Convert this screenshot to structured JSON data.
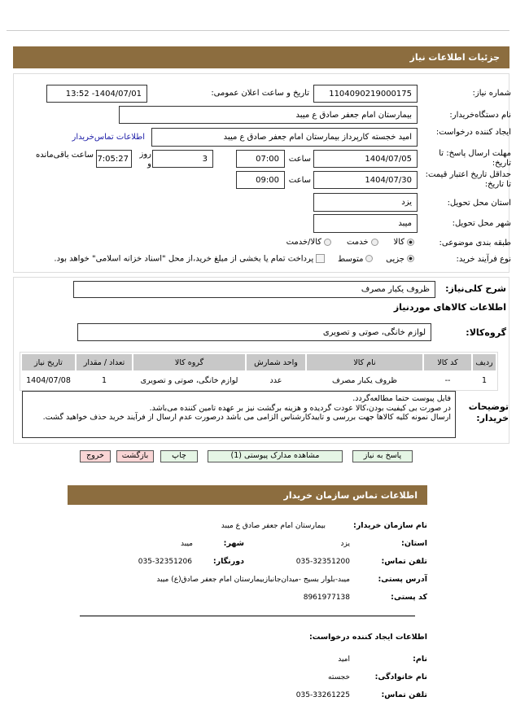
{
  "header": {
    "title": "جزئیات اطلاعات نیاز"
  },
  "form": {
    "need_number_label": "شماره نیاز:",
    "need_number": "1104090219000175",
    "announce_label": "تاریخ و ساعت اعلان عمومی:",
    "announce_value": "1404/07/01- 13:52",
    "buyer_label": "نام دستگاه‌خریدار:",
    "buyer_value": "بیمارستان امام جعفر صادق ع میبد",
    "creator_label": "ایجاد کننده درخواست:",
    "creator_value": "امید خجسته کارپرداز بیمارستان امام جعفر صادق ع میبد",
    "contact_link": "اطلاعات تماس‌خریدار",
    "deadline_label": "مهلت ارسال پاسخ: تا تاریخ:",
    "deadline_date": "1404/07/05",
    "time_label": "ساعت",
    "deadline_time": "07:00",
    "days_value": "3",
    "days_label": "روز و",
    "remaining_value": "17:05:27",
    "remaining_label": "ساعت باقی‌مانده",
    "validity_label": "حداقل تاریخ اعتبار قیمت: تا تاریخ:",
    "validity_date": "1404/07/30",
    "validity_time": "09:00",
    "province_label": "استان محل تحویل:",
    "province_value": "یزد",
    "city_label": "شهر محل تحویل:",
    "city_value": "میبد",
    "category_label": "طبقه بندی موضوعی:",
    "category_options": [
      "کالا",
      "خدمت",
      "کالا/خدمت"
    ],
    "category_selected": "کالا",
    "process_label": "نوع فرآیند خرید:",
    "process_options": [
      "جزیی",
      "متوسط"
    ],
    "process_selected": "جزیی",
    "treasury_text": "پرداخت تمام یا بخشی از مبلغ خرید،از محل \"اسناد خزانه اسلامی\" خواهد بود."
  },
  "details": {
    "summary_label": "شرح کلی‌نیاز:",
    "summary_value": "ظروف یکبار مصرف",
    "goods_heading": "اطلاعات کالاهای موردنیاز",
    "group_label": "گروه‌کالا:",
    "group_value": "لوازم خانگی، صوتی و تصویری",
    "table": {
      "headers": [
        "ردیف",
        "کد کالا",
        "نام کالا",
        "واحد شمارش",
        "گروه کالا",
        "تعداد / مقدار",
        "تاریخ نیاز"
      ],
      "rows": [
        [
          "1",
          "--",
          "ظروف یکبار مصرف",
          "عدد",
          "لوازم خانگی، صوتی و تصویری",
          "1",
          "1404/07/08"
        ]
      ]
    },
    "notes_label": "توضیحات خریدار:",
    "notes": [
      "فایل پیوست حتما مطالعه‌گردد.",
      "در صورت بی کیفیت بودن،کالا عودت گردیده و هزینه برگشت نیز بر عهده تامین کننده می‌باشد.",
      "ارسال نمونه کلیه کالاها جهت بررسی و تاییدکارشناس الزامی می باشد درصورت عدم ارسال از فرآیند خرید حذف خواهید گشت."
    ]
  },
  "buttons": {
    "reply": "پاسخ به نیاز",
    "attachments": "مشاهده مدارک پیوستی (1)",
    "print": "چاپ",
    "back": "بازگشت",
    "exit": "خروج"
  },
  "contact": {
    "title": "اطلاعات تماس سازمان خریدار",
    "org_label": "نام سازمان خریدار:",
    "org_value": "بیمارستان امام جعفر صادق ع میبد",
    "province_label": "استان:",
    "province_value": "یزد",
    "city_label": "شهر:",
    "city_value": "میبد",
    "phone_label": "تلفن تماس:",
    "phone_value": "035-32351200",
    "fax_label": "دورنگار:",
    "fax_value": "035-32351206",
    "address_label": "آدرس پستی:",
    "address_value": "میبد-بلوار بسیج -میدان‌جانبازبیمارستان امام جعفر صادق(ع) میبد",
    "postal_label": "کد پستی:",
    "postal_value": "8961977138",
    "creator_heading": "اطلاعات ایجاد کننده درخواست:",
    "name_label": "نام:",
    "name_value": "امید",
    "family_label": "نام خانوادگی:",
    "family_value": "خجسته",
    "creator_phone_label": "تلفن تماس:",
    "creator_phone_value": "035-33261225"
  },
  "colors": {
    "header": "#8c6d3f",
    "link": "#1a1aa6",
    "green_button": "#e5f5e5",
    "red_button": "#f9d5d5"
  }
}
